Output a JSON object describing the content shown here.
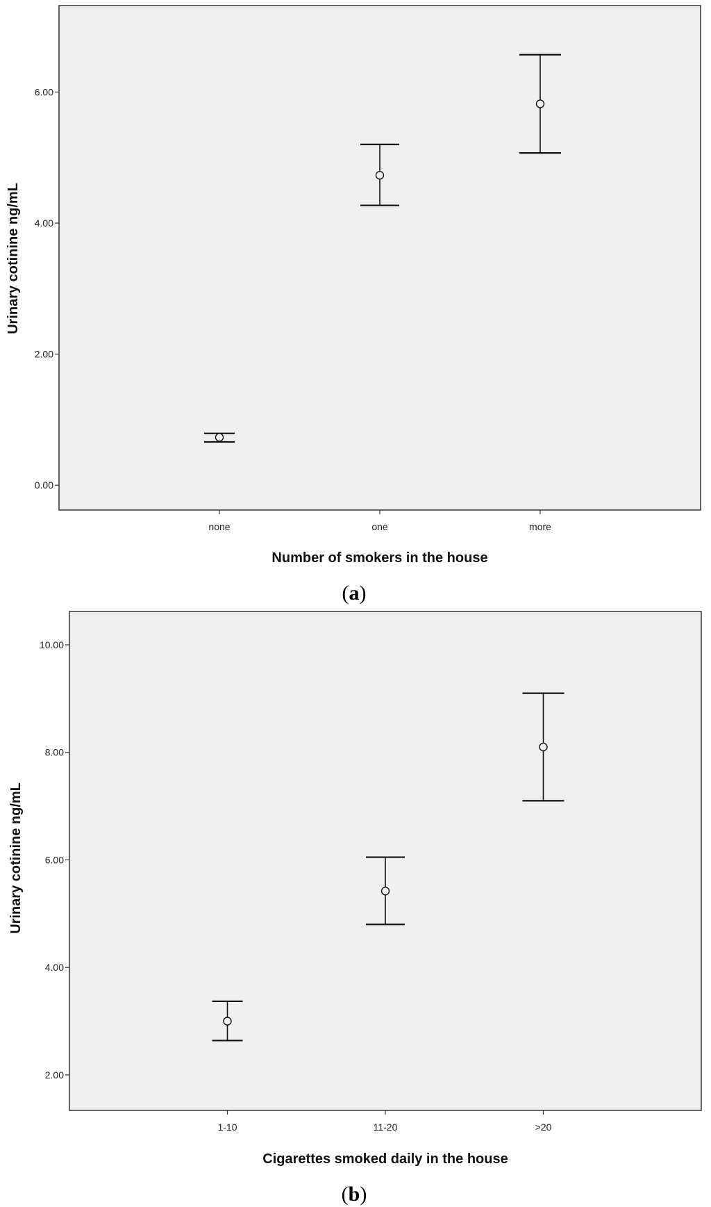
{
  "colors": {
    "plot_background": "#efefef",
    "axis": "#333333",
    "marks": "#111111"
  },
  "chart_data": [
    {
      "type": "errorbar",
      "panel_label": "a",
      "xlabel": "Number of smokers in the house",
      "ylabel": "Urinary cotinine ng/mL",
      "categories": [
        "none",
        "one",
        "more"
      ],
      "mean": [
        0.73,
        4.73,
        5.82
      ],
      "lower": [
        0.66,
        4.27,
        5.07
      ],
      "upper": [
        0.79,
        5.2,
        6.57
      ],
      "yticks": [
        0,
        2,
        4,
        6
      ],
      "ytick_labels": [
        "0.00",
        "2.00",
        "4.00",
        "6.00"
      ],
      "ylim": [
        -0.38,
        7.32
      ],
      "grid": false
    },
    {
      "type": "errorbar",
      "panel_label": "b",
      "xlabel": "Cigarettes smoked daily in the house",
      "ylabel": "Urinary cotinine ng/mL",
      "categories": [
        "1-10",
        "11-20",
        ">20"
      ],
      "mean": [
        3.0,
        5.42,
        8.1
      ],
      "lower": [
        2.64,
        4.8,
        7.1
      ],
      "upper": [
        3.37,
        6.05,
        9.1
      ],
      "yticks": [
        2,
        4,
        6,
        8,
        10
      ],
      "ytick_labels": [
        "2.00",
        "4.00",
        "6.00",
        "8.00",
        "10.00"
      ],
      "ylim": [
        1.34,
        10.62
      ],
      "grid": false
    }
  ]
}
